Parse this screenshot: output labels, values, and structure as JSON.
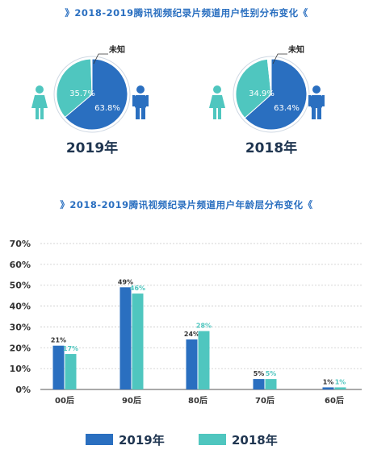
{
  "colors": {
    "accent_2019": "#2a6fc0",
    "accent_2018": "#4fc6bf",
    "title": "#2a6fc0",
    "axis_text": "#333333",
    "grid": "#c9c9c9"
  },
  "chart_data": [
    {
      "type": "pie",
      "title": "2018-2019腾讯视频纪录片频道用户性别分布变化",
      "caption": "2019年",
      "slices": [
        {
          "name": "男",
          "value": 63.8,
          "label": "63.8%"
        },
        {
          "name": "女",
          "value": 35.7,
          "label": "35.7%"
        },
        {
          "name": "未知",
          "value": 0.5,
          "label": "未知"
        }
      ],
      "icons": [
        "female-icon",
        "male-icon"
      ]
    },
    {
      "type": "pie",
      "caption": "2018年",
      "slices": [
        {
          "name": "男",
          "value": 63.4,
          "label": "63.4%"
        },
        {
          "name": "女",
          "value": 34.9,
          "label": "34.9%"
        },
        {
          "name": "未知",
          "value": 1.7,
          "label": "未知"
        }
      ],
      "icons": [
        "female-icon",
        "male-icon"
      ]
    },
    {
      "type": "bar",
      "title": "2018-2019腾讯视频纪录片频道用户年龄层分布变化",
      "categories": [
        "00后",
        "90后",
        "80后",
        "70后",
        "60后"
      ],
      "series": [
        {
          "name": "2019年",
          "values": [
            21,
            49,
            24,
            5,
            1
          ],
          "labels": [
            "21%",
            "49%",
            "24%",
            "5%",
            "1%"
          ]
        },
        {
          "name": "2018年",
          "values": [
            17,
            46,
            28,
            5,
            1
          ],
          "labels": [
            "17%",
            "46%",
            "28%",
            "5%",
            "1%"
          ]
        }
      ],
      "yticks": [
        "0%",
        "10%",
        "20%",
        "30%",
        "40%",
        "50%",
        "60%",
        "70%"
      ],
      "ylim": [
        0,
        70
      ],
      "legend": "bottom",
      "grid": true
    }
  ]
}
